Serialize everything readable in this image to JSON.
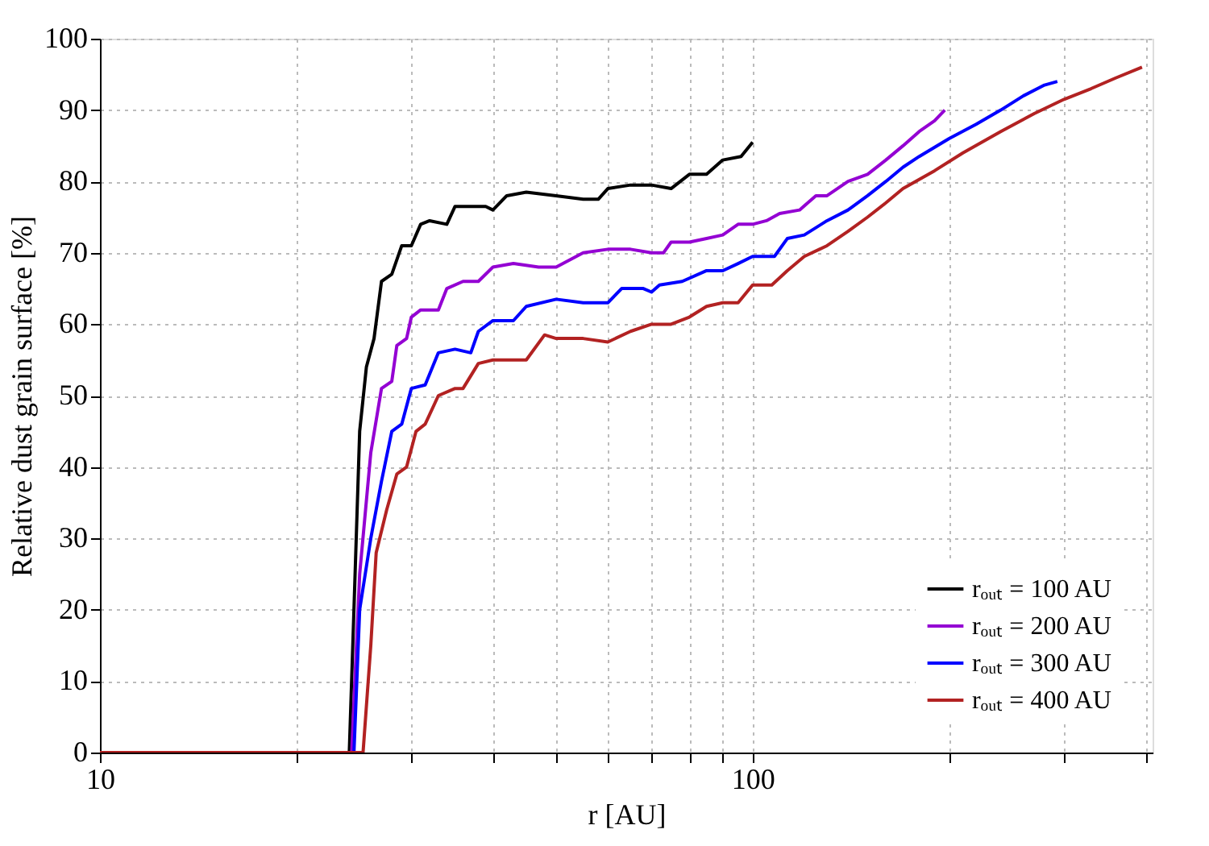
{
  "chart_data": {
    "type": "line",
    "xlabel": "r [AU]",
    "ylabel": "Relative dust grain surface [%]",
    "log": "x",
    "xlim": [
      10,
      410
    ],
    "xticks": [
      10,
      {
        "value": 20,
        "label": null
      },
      {
        "value": 30,
        "label": null
      },
      {
        "value": 40,
        "label": null
      },
      {
        "value": 50,
        "label": null
      },
      {
        "value": 60,
        "label": null
      },
      {
        "value": 70,
        "label": null
      },
      {
        "value": 80,
        "label": null
      },
      {
        "value": 90,
        "label": null
      },
      100,
      {
        "value": 200,
        "label": null
      },
      {
        "value": 300,
        "label": null
      },
      {
        "value": 400,
        "label": null
      }
    ],
    "ylim": [
      0,
      100
    ],
    "yticks": [
      0,
      10,
      20,
      30,
      40,
      50,
      60,
      70,
      80,
      90,
      100
    ],
    "grid": true,
    "legend": "bottom right",
    "line_style": "solid",
    "marker": "none",
    "series": [
      {
        "name": "rₒᵤₜ = 100 AU",
        "color": "#000000",
        "x": [
          10,
          24.1,
          24.5,
          25,
          25.6,
          26.3,
          27,
          28,
          29,
          30,
          31,
          32,
          34,
          35,
          37,
          39,
          40,
          42,
          45,
          50,
          55,
          58,
          60,
          65,
          70,
          75,
          80,
          85,
          90,
          96,
          100
        ],
        "values": [
          0,
          0,
          20,
          45,
          54,
          58,
          66,
          67,
          71,
          71,
          74,
          74.5,
          74,
          76.5,
          76.5,
          76.5,
          76,
          78,
          78.5,
          78,
          77.5,
          77.5,
          79,
          79.5,
          79.5,
          79,
          81,
          81,
          83,
          83.5,
          85.5
        ]
      },
      {
        "name": "rₒᵤₜ = 200 AU",
        "color": "#9400d3",
        "x": [
          10,
          24.3,
          25,
          26,
          27,
          28,
          28.5,
          29.5,
          30,
          31,
          33,
          34,
          36,
          38,
          40,
          43,
          47,
          50,
          55,
          60,
          65,
          70,
          73,
          75,
          80,
          85,
          90,
          95,
          100,
          105,
          110,
          118,
          125,
          130,
          140,
          150,
          160,
          170,
          180,
          190,
          197
        ],
        "values": [
          0,
          0,
          25,
          42,
          51,
          52,
          57,
          58,
          61,
          62,
          62,
          65,
          66,
          66,
          68,
          68.5,
          68,
          68,
          70,
          70.5,
          70.5,
          70,
          70,
          71.5,
          71.5,
          72,
          72.5,
          74,
          74,
          74.5,
          75.5,
          76,
          78,
          78,
          80,
          81,
          83,
          85,
          87,
          88.5,
          90
        ]
      },
      {
        "name": "rₒᵤₜ = 300 AU",
        "color": "#0000ff",
        "x": [
          10,
          24.5,
          25,
          26,
          27,
          28,
          29,
          30,
          31.5,
          33,
          35,
          37,
          38,
          40,
          43,
          45,
          50,
          55,
          60,
          63,
          68,
          70,
          72,
          78,
          85,
          90,
          95,
          100,
          108,
          113,
          120,
          130,
          140,
          150,
          160,
          170,
          180,
          200,
          220,
          240,
          260,
          280,
          293
        ],
        "values": [
          0,
          0,
          20,
          30,
          38,
          45,
          46,
          51,
          51.5,
          56,
          56.5,
          56,
          59,
          60.5,
          60.5,
          62.5,
          63.5,
          63,
          63,
          65,
          65,
          64.5,
          65.5,
          66,
          67.5,
          67.5,
          68.5,
          69.5,
          69.5,
          72,
          72.5,
          74.5,
          76,
          78,
          80,
          82,
          83.5,
          86,
          88,
          90,
          92,
          93.5,
          94
        ]
      },
      {
        "name": "rₒᵤₜ = 400 AU",
        "color": "#b22222",
        "x": [
          10,
          25.3,
          26,
          26.5,
          27.5,
          28.5,
          29.5,
          30.5,
          31.5,
          33,
          35,
          36,
          38,
          40,
          45,
          48,
          50,
          55,
          60,
          65,
          70,
          75,
          80,
          85,
          90,
          95,
          100,
          107,
          113,
          120,
          130,
          140,
          150,
          160,
          170,
          190,
          210,
          240,
          270,
          300,
          330,
          360,
          395
        ],
        "values": [
          0,
          0,
          15,
          28,
          34,
          39,
          40,
          45,
          46,
          50,
          51,
          51,
          54.5,
          55,
          55,
          58.5,
          58,
          58,
          57.5,
          59,
          60,
          60,
          61,
          62.5,
          63,
          63,
          65.5,
          65.5,
          67.5,
          69.5,
          71,
          73,
          75,
          77,
          79,
          81.5,
          84,
          87,
          89.5,
          91.5,
          93,
          94.5,
          96
        ]
      }
    ]
  }
}
